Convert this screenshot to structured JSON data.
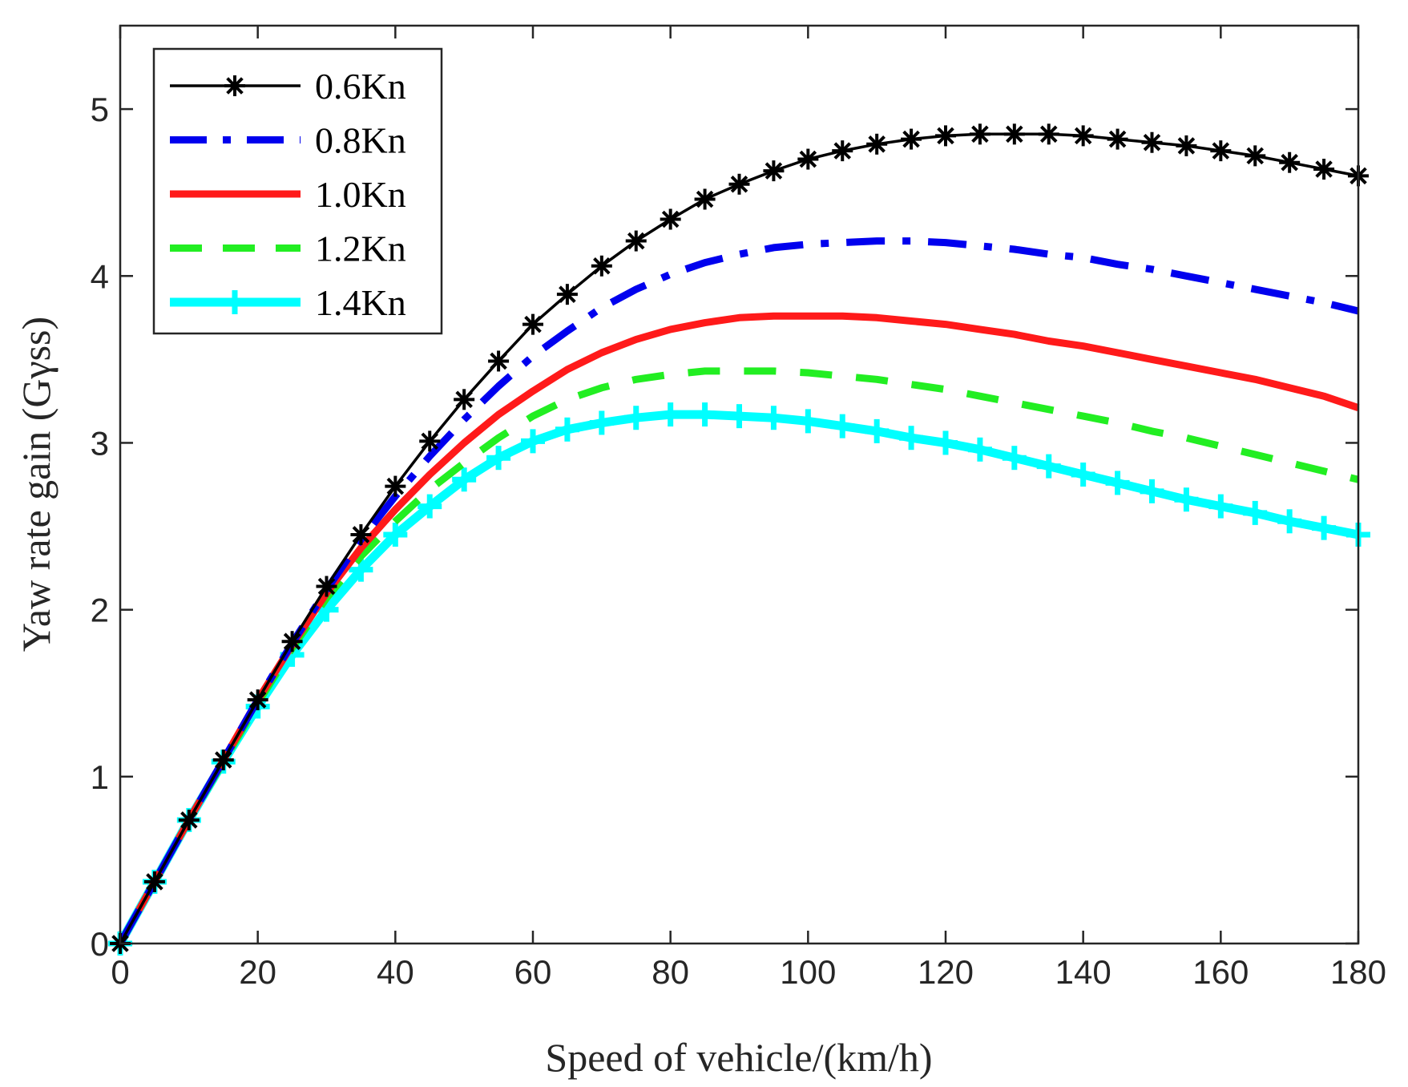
{
  "chart_data": {
    "type": "line",
    "xlabel": "Speed of vehicle/(km/h)",
    "ylabel": "Yaw rate gain (Gγss)",
    "xlim": [
      0,
      180
    ],
    "ylim": [
      0,
      5.5
    ],
    "xticks": [
      0,
      20,
      40,
      60,
      80,
      100,
      120,
      140,
      160,
      180
    ],
    "yticks": [
      0,
      1,
      2,
      3,
      4,
      5
    ],
    "grid": false,
    "legend_position": "top-left",
    "x": [
      0,
      5,
      10,
      15,
      20,
      25,
      30,
      35,
      40,
      45,
      50,
      55,
      60,
      65,
      70,
      75,
      80,
      85,
      90,
      95,
      100,
      105,
      110,
      115,
      120,
      125,
      130,
      135,
      140,
      145,
      150,
      155,
      160,
      165,
      170,
      175,
      180
    ],
    "series": [
      {
        "name": "0.6Kn",
        "color": "#000000",
        "style": "solid-asterisk",
        "values": [
          0,
          0.37,
          0.74,
          1.1,
          1.46,
          1.81,
          2.14,
          2.45,
          2.74,
          3.01,
          3.26,
          3.49,
          3.71,
          3.89,
          4.06,
          4.21,
          4.34,
          4.46,
          4.55,
          4.63,
          4.7,
          4.75,
          4.79,
          4.82,
          4.84,
          4.85,
          4.85,
          4.85,
          4.84,
          4.82,
          4.8,
          4.78,
          4.75,
          4.72,
          4.68,
          4.64,
          4.6
        ]
      },
      {
        "name": "0.8Kn",
        "color": "#0000ee",
        "style": "dash-dot",
        "values": [
          0,
          0.37,
          0.74,
          1.1,
          1.46,
          1.8,
          2.12,
          2.42,
          2.68,
          2.92,
          3.14,
          3.34,
          3.52,
          3.67,
          3.81,
          3.92,
          4.01,
          4.08,
          4.13,
          4.17,
          4.19,
          4.2,
          4.21,
          4.21,
          4.2,
          4.18,
          4.16,
          4.13,
          4.11,
          4.07,
          4.04,
          4.0,
          3.96,
          3.92,
          3.88,
          3.84,
          3.79
        ]
      },
      {
        "name": "1.0Kn",
        "color": "#ff1a1a",
        "style": "solid",
        "values": [
          0,
          0.37,
          0.74,
          1.1,
          1.46,
          1.79,
          2.1,
          2.37,
          2.6,
          2.81,
          3.0,
          3.17,
          3.31,
          3.44,
          3.54,
          3.62,
          3.68,
          3.72,
          3.75,
          3.76,
          3.76,
          3.76,
          3.75,
          3.73,
          3.71,
          3.68,
          3.65,
          3.61,
          3.58,
          3.54,
          3.5,
          3.46,
          3.42,
          3.38,
          3.33,
          3.28,
          3.21
        ]
      },
      {
        "name": "1.2Kn",
        "color": "#22ee22",
        "style": "dashed",
        "values": [
          0,
          0.37,
          0.74,
          1.09,
          1.44,
          1.77,
          2.07,
          2.32,
          2.53,
          2.72,
          2.88,
          3.03,
          3.16,
          3.26,
          3.33,
          3.38,
          3.41,
          3.43,
          3.43,
          3.43,
          3.42,
          3.4,
          3.38,
          3.35,
          3.32,
          3.28,
          3.24,
          3.2,
          3.16,
          3.12,
          3.07,
          3.03,
          2.98,
          2.93,
          2.88,
          2.83,
          2.78
        ]
      },
      {
        "name": "1.4Kn",
        "color": "#00ffff",
        "style": "solid-plus",
        "values": [
          0,
          0.37,
          0.74,
          1.09,
          1.42,
          1.73,
          2.0,
          2.24,
          2.45,
          2.62,
          2.78,
          2.91,
          3.01,
          3.08,
          3.12,
          3.15,
          3.17,
          3.17,
          3.16,
          3.15,
          3.13,
          3.1,
          3.07,
          3.03,
          3.0,
          2.96,
          2.91,
          2.86,
          2.81,
          2.76,
          2.71,
          2.66,
          2.62,
          2.58,
          2.53,
          2.49,
          2.45
        ]
      }
    ]
  }
}
